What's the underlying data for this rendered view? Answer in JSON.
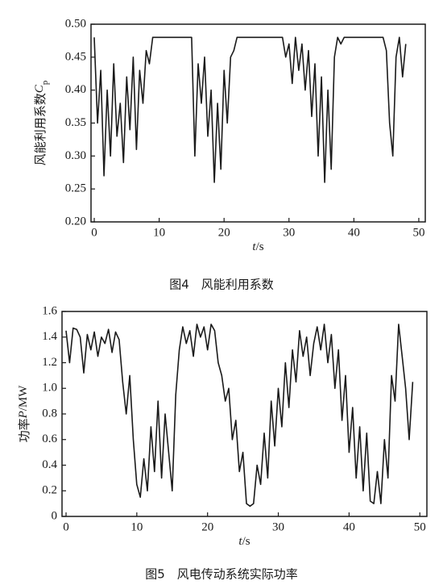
{
  "chart_data": [
    {
      "type": "line",
      "ylabel": [
        "风能利用系数",
        "C",
        "p"
      ],
      "xlabel": [
        "t",
        "/s"
      ],
      "caption": "图4　风能利用系数",
      "xlim": [
        -0.5,
        51
      ],
      "ylim": [
        0.2,
        0.5
      ],
      "xticks": [
        0,
        10,
        20,
        30,
        40,
        50
      ],
      "yticks": [
        {
          "value": 0.2,
          "label": "0.20"
        },
        {
          "value": 0.25,
          "label": "0.25"
        },
        {
          "value": 0.3,
          "label": "0.30"
        },
        {
          "value": 0.35,
          "label": "0.35"
        },
        {
          "value": 0.4,
          "label": "0.40"
        },
        {
          "value": 0.45,
          "label": "0.45"
        },
        {
          "value": 0.5,
          "label": "0.50"
        }
      ],
      "color": "#1a1a1a",
      "x": [
        0,
        0.5,
        1,
        1.5,
        2,
        2.5,
        3,
        3.5,
        4,
        4.5,
        5,
        5.5,
        6,
        6.5,
        7,
        7.5,
        8,
        8.5,
        9,
        9.5,
        10,
        10.5,
        11,
        11.5,
        12,
        12.5,
        13,
        13.5,
        14,
        14.5,
        15,
        15.5,
        16,
        16.5,
        17,
        17.5,
        18,
        18.5,
        19,
        19.5,
        20,
        20.5,
        21,
        21.5,
        22,
        22.5,
        23,
        23.5,
        24,
        24.5,
        25,
        25.5,
        26,
        26.5,
        27,
        27.5,
        28,
        28.5,
        29,
        29.5,
        30,
        30.5,
        31,
        31.5,
        32,
        32.5,
        33,
        33.5,
        34,
        34.5,
        35,
        35.5,
        36,
        36.5,
        37,
        37.5,
        38,
        38.5,
        39,
        39.5,
        40,
        40.5,
        41,
        41.5,
        42,
        42.5,
        43,
        43.5,
        44,
        44.5,
        45,
        45.5,
        46,
        46.5,
        47,
        47.5,
        48
      ],
      "values": [
        0.48,
        0.35,
        0.43,
        0.27,
        0.4,
        0.3,
        0.44,
        0.33,
        0.38,
        0.29,
        0.42,
        0.34,
        0.45,
        0.31,
        0.43,
        0.38,
        0.46,
        0.44,
        0.48,
        0.48,
        0.48,
        0.48,
        0.48,
        0.48,
        0.48,
        0.48,
        0.48,
        0.48,
        0.48,
        0.48,
        0.48,
        0.3,
        0.44,
        0.38,
        0.45,
        0.33,
        0.4,
        0.26,
        0.38,
        0.28,
        0.43,
        0.35,
        0.45,
        0.46,
        0.48,
        0.48,
        0.48,
        0.48,
        0.48,
        0.48,
        0.48,
        0.48,
        0.48,
        0.48,
        0.48,
        0.48,
        0.48,
        0.48,
        0.48,
        0.45,
        0.47,
        0.41,
        0.48,
        0.43,
        0.47,
        0.4,
        0.46,
        0.36,
        0.44,
        0.3,
        0.42,
        0.26,
        0.4,
        0.28,
        0.45,
        0.48,
        0.47,
        0.48,
        0.48,
        0.48,
        0.48,
        0.48,
        0.48,
        0.48,
        0.48,
        0.48,
        0.48,
        0.48,
        0.48,
        0.48,
        0.46,
        0.35,
        0.3,
        0.45,
        0.48,
        0.42,
        0.47
      ]
    },
    {
      "type": "line",
      "ylabel": [
        "功率",
        "P",
        "/MW"
      ],
      "xlabel": [
        "t",
        "/s"
      ],
      "caption": "图5　风电传动系统实际功率",
      "xlim": [
        -0.57,
        51
      ],
      "ylim": [
        0,
        1.6
      ],
      "xticks": [
        0,
        10,
        20,
        30,
        40,
        50
      ],
      "yticks": [
        0,
        0.2,
        0.4,
        0.6,
        0.8,
        {
          "value": 1,
          "label": "1.0"
        },
        1.2,
        1.4,
        1.6
      ],
      "color": "#1a1a1a",
      "x": [
        0,
        0.5,
        1,
        1.5,
        2,
        2.5,
        3,
        3.5,
        4,
        4.5,
        5,
        5.5,
        6,
        6.5,
        7,
        7.5,
        8,
        8.5,
        9,
        9.5,
        10,
        10.5,
        11,
        11.5,
        12,
        12.5,
        13,
        13.5,
        14,
        14.5,
        15,
        15.5,
        16,
        16.5,
        17,
        17.5,
        18,
        18.5,
        19,
        19.5,
        20,
        20.5,
        21,
        21.5,
        22,
        22.5,
        23,
        23.5,
        24,
        24.5,
        25,
        25.5,
        26,
        26.5,
        27,
        27.5,
        28,
        28.5,
        29,
        29.5,
        30,
        30.5,
        31,
        31.5,
        32,
        32.5,
        33,
        33.5,
        34,
        34.5,
        35,
        35.5,
        36,
        36.5,
        37,
        37.5,
        38,
        38.5,
        39,
        39.5,
        40,
        40.5,
        41,
        41.5,
        42,
        42.5,
        43,
        43.5,
        44,
        44.5,
        45,
        45.5,
        46,
        46.5,
        47,
        47.5,
        48,
        48.5,
        49
      ],
      "values": [
        1.45,
        1.2,
        1.47,
        1.46,
        1.4,
        1.12,
        1.42,
        1.3,
        1.44,
        1.25,
        1.4,
        1.35,
        1.46,
        1.28,
        1.44,
        1.38,
        1.05,
        0.8,
        1.1,
        0.6,
        0.25,
        0.15,
        0.45,
        0.2,
        0.7,
        0.35,
        0.9,
        0.3,
        0.8,
        0.5,
        0.2,
        0.95,
        1.3,
        1.48,
        1.35,
        1.45,
        1.25,
        1.5,
        1.4,
        1.48,
        1.3,
        1.5,
        1.45,
        1.2,
        1.1,
        0.9,
        1.0,
        0.6,
        0.75,
        0.35,
        0.5,
        0.1,
        0.08,
        0.1,
        0.4,
        0.25,
        0.65,
        0.3,
        0.9,
        0.55,
        1.0,
        0.7,
        1.2,
        0.85,
        1.3,
        1.05,
        1.45,
        1.25,
        1.4,
        1.1,
        1.35,
        1.48,
        1.3,
        1.5,
        1.2,
        1.42,
        1.0,
        1.3,
        0.75,
        1.1,
        0.5,
        0.85,
        0.3,
        0.7,
        0.2,
        0.65,
        0.12,
        0.1,
        0.35,
        0.1,
        0.6,
        0.3,
        1.1,
        0.9,
        1.5,
        1.25,
        1.0,
        0.6,
        1.05
      ]
    }
  ]
}
